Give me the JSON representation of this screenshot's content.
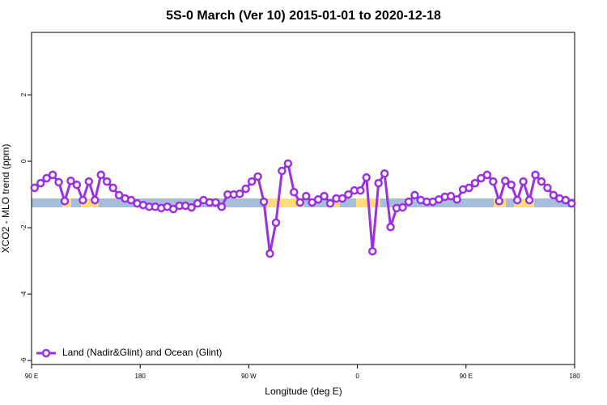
{
  "chart_data": {
    "type": "line",
    "title": "5S-0 March (Ver 10)   2015-01-01 to 2020-12-18",
    "x_label": "Longitude (deg E)",
    "y_label": "XCO2 - MLO trend (ppm)",
    "legend": "bottom-left",
    "xlim": [
      90,
      540
    ],
    "ylim": [
      -6.12,
      3.88
    ],
    "xticks": [
      {
        "value": 90,
        "label": "90 E"
      },
      180,
      {
        "value": 270,
        "label": "90 W"
      },
      {
        "value": 360,
        "label": "0"
      },
      {
        "value": 450,
        "label": "90 E"
      },
      {
        "value": 540,
        "label": "180"
      }
    ],
    "yticks": [
      -6,
      -4,
      -2,
      0,
      2
    ],
    "x": [
      92.5,
      97.5,
      102.5,
      107.5,
      112.5,
      117.5,
      122.5,
      127.5,
      132.5,
      137.5,
      142.5,
      147.5,
      152.5,
      157.5,
      162.5,
      167.5,
      172.5,
      177.5,
      182.5,
      187.5,
      192.5,
      197.5,
      202.5,
      207.5,
      212.5,
      217.5,
      222.5,
      227.5,
      232.5,
      237.5,
      242.5,
      247.5,
      252.5,
      257.5,
      262.5,
      267.5,
      272.5,
      277.5,
      282.5,
      287.5,
      292.5,
      297.5,
      302.5,
      307.5,
      312.5,
      317.5,
      322.5,
      327.5,
      332.5,
      337.5,
      342.5,
      347.5,
      352.5,
      357.5,
      362.5,
      367.5,
      372.5,
      377.5,
      382.5,
      387.5,
      392.5,
      397.5,
      402.5,
      407.5,
      412.5,
      417.5,
      422.5,
      427.5,
      432.5,
      437.5,
      442.5,
      447.5,
      452.5,
      457.5,
      462.5,
      467.5,
      472.5,
      477.5,
      482.5,
      487.5,
      492.5,
      497.5,
      502.5,
      507.5,
      512.5,
      517.5,
      522.5,
      527.5,
      532.5,
      537.5
    ],
    "series": [
      {
        "name": "Land (Nadir&Glint) and Ocean (Glint)",
        "color": "#9b30e0",
        "values": [
          -0.8,
          -0.66,
          -0.51,
          -0.41,
          -0.63,
          -1.2,
          -0.59,
          -0.71,
          -1.17,
          -0.61,
          -1.17,
          -0.41,
          -0.61,
          -0.8,
          -1.02,
          -1.12,
          -1.17,
          -1.27,
          -1.32,
          -1.37,
          -1.37,
          -1.41,
          -1.37,
          -1.44,
          -1.34,
          -1.34,
          -1.39,
          -1.27,
          -1.17,
          -1.24,
          -1.24,
          -1.37,
          -1.0,
          -1.0,
          -0.98,
          -0.83,
          -0.61,
          -0.46,
          -1.22,
          -2.78,
          -1.85,
          -0.29,
          -0.07,
          -0.93,
          -1.24,
          -1.05,
          -1.24,
          -1.15,
          -1.05,
          -1.27,
          -1.12,
          -1.12,
          -1.0,
          -0.88,
          -0.88,
          -0.49,
          -2.71,
          -0.66,
          -0.37,
          -1.98,
          -1.41,
          -1.39,
          -1.22,
          -1.02,
          -1.17,
          -1.22,
          -1.22,
          -1.15,
          -1.07,
          -1.05,
          -1.15,
          -0.85,
          -0.8,
          -0.66,
          -0.51,
          -0.41,
          -0.61,
          -1.2,
          -0.59,
          -0.71,
          -1.17,
          -0.61,
          -1.17,
          -0.41,
          -0.61,
          -0.8,
          -1.02,
          -1.12,
          -1.17,
          -1.27
        ]
      }
    ]
  }
}
